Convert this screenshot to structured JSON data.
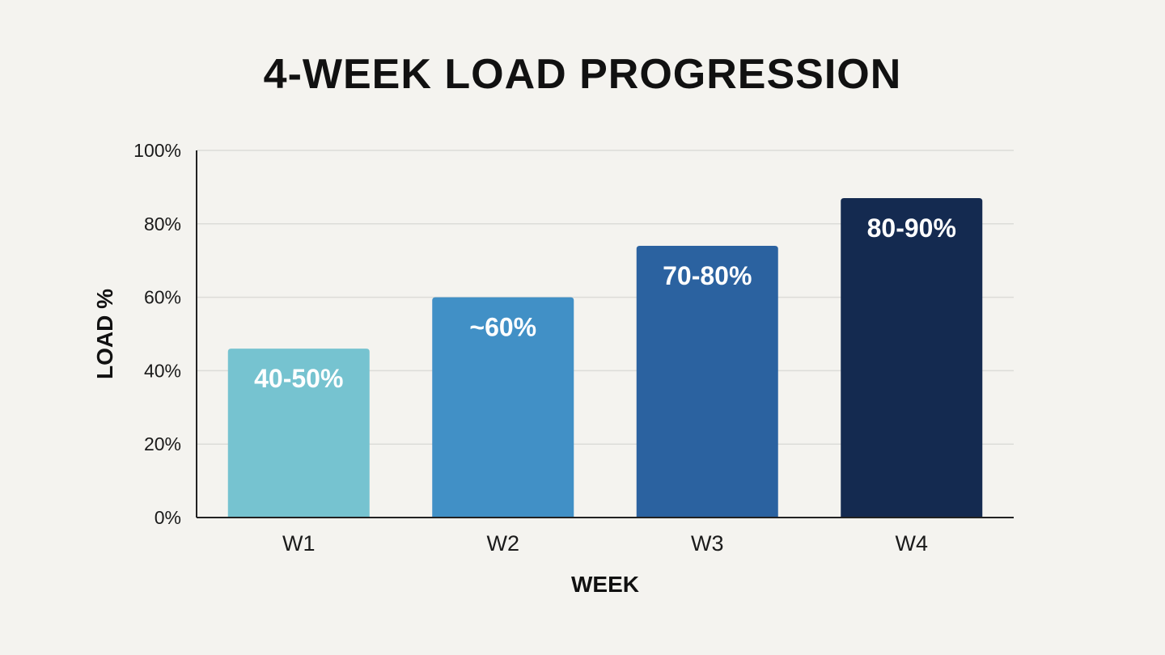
{
  "chart_data": {
    "type": "bar",
    "title": "4-WEEK LOAD PROGRESSION",
    "xlabel": "WEEK",
    "ylabel": "LOAD %",
    "categories": [
      "W1",
      "W2",
      "W3",
      "W4"
    ],
    "values": [
      46,
      60,
      74,
      87
    ],
    "data_labels": [
      "40-50%",
      "~60%",
      "70-80%",
      "80-90%"
    ],
    "bar_colors": [
      "#76c3d0",
      "#4190c6",
      "#2b62a0",
      "#142a50"
    ],
    "ylim": [
      0,
      100
    ],
    "yticks": [
      0,
      20,
      40,
      60,
      80,
      100
    ],
    "ytick_labels": [
      "0%",
      "20%",
      "40%",
      "60%",
      "80%",
      "100%"
    ],
    "grid": true,
    "legend": "none"
  }
}
